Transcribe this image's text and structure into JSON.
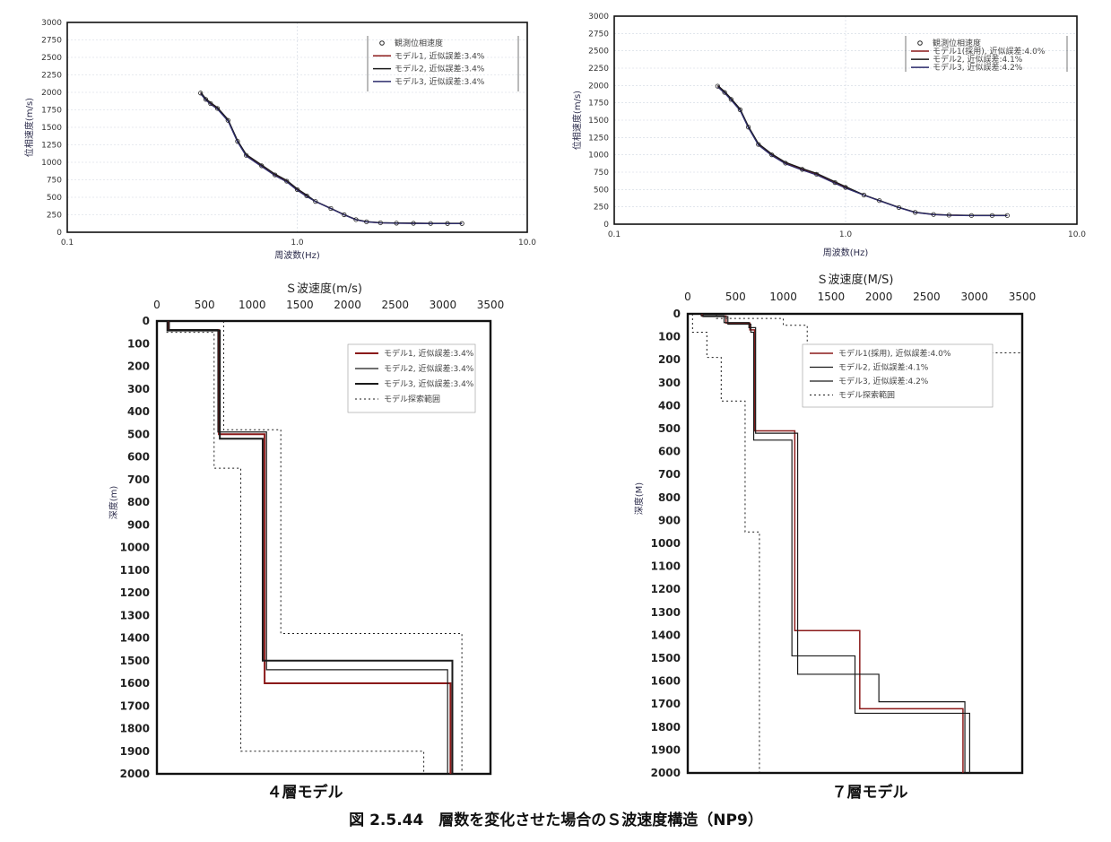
{
  "figure_caption": "図 2.5.44　層数を変化させた場合のＳ波速度構造（NP9）",
  "colors": {
    "red": "#8b1a1a",
    "dark": "#1a1a1a",
    "navy": "#2c2c6c",
    "frame": "#111111",
    "grid": "#cfd6e0"
  },
  "chart_data": [
    {
      "id": "dispersion-4layer",
      "type": "scatter",
      "xscale": "log",
      "xlim": [
        0.1,
        10.0
      ],
      "ylim": [
        0,
        3000
      ],
      "xticks": [
        "0.1",
        "1.0",
        "10.0"
      ],
      "yticks": [
        "0",
        "250",
        "500",
        "750",
        "1000",
        "1250",
        "1500",
        "1750",
        "2000",
        "2250",
        "2500",
        "2750",
        "3000"
      ],
      "xlabel": "周波数(Hz)",
      "ylabel": "位相速度(m/s)",
      "legend": [
        "観測位相速度",
        "モデル1, 近似誤差:3.4%",
        "モデル2, 近似誤差:3.4%",
        "モデル3, 近似誤差:3.4%"
      ],
      "observed": {
        "x": [
          0.38,
          0.4,
          0.42,
          0.45,
          0.5,
          0.55,
          0.6,
          0.7,
          0.8,
          0.9,
          1.0,
          1.1,
          1.2,
          1.4,
          1.6,
          1.8,
          2.0,
          2.3,
          2.7,
          3.2,
          3.8,
          4.5,
          5.2
        ],
        "y": [
          1990,
          1900,
          1840,
          1770,
          1600,
          1300,
          1100,
          950,
          820,
          730,
          610,
          520,
          440,
          340,
          250,
          180,
          150,
          135,
          130,
          128,
          126,
          125,
          125
        ]
      },
      "series": [
        {
          "name": "モデル1, 近似誤差:3.4%",
          "color": "red"
        },
        {
          "name": "モデル2, 近似誤差:3.4%",
          "color": "dark"
        },
        {
          "name": "モデル3, 近似誤差:3.4%",
          "color": "navy"
        }
      ]
    },
    {
      "id": "dispersion-7layer",
      "type": "scatter",
      "xscale": "log",
      "xlim": [
        0.1,
        10.0
      ],
      "ylim": [
        0,
        3000
      ],
      "xticks": [
        "0.1",
        "1.0",
        "10.0"
      ],
      "yticks": [
        "0",
        "250",
        "500",
        "750",
        "1000",
        "1250",
        "1500",
        "1750",
        "2000",
        "2250",
        "2500",
        "2750",
        "3000"
      ],
      "xlabel": "周波数(Hz)",
      "ylabel": "位相速度(m/s)",
      "legend": [
        "観測位相速度",
        "モデル1(採用), 近似誤差:4.0%",
        "モデル2, 近似誤差:4.1%",
        "モデル3, 近似誤差:4.2%"
      ],
      "observed": {
        "x": [
          0.28,
          0.3,
          0.32,
          0.35,
          0.38,
          0.42,
          0.48,
          0.55,
          0.65,
          0.75,
          0.9,
          1.0,
          1.2,
          1.4,
          1.7,
          2.0,
          2.4,
          2.8,
          3.5,
          4.3,
          5.0
        ],
        "y": [
          1990,
          1900,
          1800,
          1650,
          1400,
          1150,
          1000,
          880,
          790,
          720,
          600,
          530,
          420,
          340,
          240,
          170,
          140,
          130,
          125,
          125,
          125
        ]
      },
      "series": [
        {
          "name": "モデル1(採用), 近似誤差:4.0%",
          "color": "red"
        },
        {
          "name": "モデル2, 近似誤差:4.1%",
          "color": "dark"
        },
        {
          "name": "モデル3, 近似誤差:4.2%",
          "color": "navy"
        }
      ]
    },
    {
      "id": "profile-4layer",
      "type": "line",
      "title": "４層モデル",
      "xlabel": "Ｓ波速度(m/s)",
      "ylabel": "深度(m)",
      "xlim": [
        0,
        3500
      ],
      "ylim": [
        2000,
        0
      ],
      "xticks": [
        "0",
        "500",
        "1000",
        "1500",
        "2000",
        "2500",
        "3000",
        "3500"
      ],
      "yticks": [
        "0",
        "100",
        "200",
        "300",
        "400",
        "500",
        "600",
        "700",
        "800",
        "900",
        "1000",
        "1100",
        "1200",
        "1300",
        "1400",
        "1500",
        "1600",
        "1700",
        "1800",
        "1900",
        "2000"
      ],
      "legend": [
        "モデル1, 近似誤差:3.4%",
        "モデル2, 近似誤差:3.4%",
        "モデル3, 近似誤差:3.4%",
        "モデル探索範囲"
      ],
      "series": [
        {
          "name": "モデル1, 近似誤差:3.4%",
          "color": "red",
          "style": "solid",
          "width": 2,
          "points": [
            [
              120,
              0
            ],
            [
              120,
              40
            ],
            [
              650,
              40
            ],
            [
              650,
              500
            ],
            [
              1130,
              500
            ],
            [
              1130,
              1600
            ],
            [
              3080,
              1600
            ],
            [
              3080,
              2000
            ]
          ]
        },
        {
          "name": "モデル2, 近似誤差:3.4%",
          "color": "dark",
          "style": "solid",
          "width": 1.2,
          "points": [
            [
              130,
              0
            ],
            [
              130,
              38
            ],
            [
              640,
              38
            ],
            [
              640,
              490
            ],
            [
              1150,
              490
            ],
            [
              1150,
              1540
            ],
            [
              3050,
              1540
            ],
            [
              3050,
              2000
            ]
          ]
        },
        {
          "name": "モデル3, 近似誤差:3.4%",
          "color": "dark",
          "style": "solid",
          "width": 2,
          "points": [
            [
              110,
              0
            ],
            [
              110,
              42
            ],
            [
              660,
              42
            ],
            [
              660,
              520
            ],
            [
              1110,
              520
            ],
            [
              1110,
              1500
            ],
            [
              3100,
              1500
            ],
            [
              3100,
              2000
            ]
          ]
        },
        {
          "name": "モデル探索範囲",
          "color": "dark",
          "style": "dotted",
          "width": 1,
          "points": [
            [
              100,
              50
            ],
            [
              600,
              50
            ],
            [
              600,
              650
            ],
            [
              880,
              650
            ],
            [
              880,
              1900
            ],
            [
              2800,
              1900
            ],
            [
              2800,
              2000
            ]
          ]
        },
        {
          "name": "モデル探索範囲",
          "color": "dark",
          "style": "dotted",
          "width": 1,
          "legend": false,
          "points": [
            [
              700,
              0
            ],
            [
              700,
              480
            ],
            [
              1300,
              480
            ],
            [
              1300,
              1380
            ],
            [
              3200,
              1380
            ],
            [
              3200,
              2000
            ]
          ]
        }
      ]
    },
    {
      "id": "profile-7layer",
      "type": "line",
      "title": "７層モデル",
      "xlabel": "Ｓ波速度(M/S)",
      "ylabel": "深度(M)",
      "xlim": [
        0,
        3500
      ],
      "ylim": [
        2000,
        0
      ],
      "xticks": [
        "0",
        "500",
        "1000",
        "1500",
        "2000",
        "2500",
        "3000",
        "3500"
      ],
      "yticks": [
        "0",
        "100",
        "200",
        "300",
        "400",
        "500",
        "600",
        "700",
        "800",
        "900",
        "1000",
        "1100",
        "1200",
        "1300",
        "1400",
        "1500",
        "1600",
        "1700",
        "1800",
        "1900",
        "2000"
      ],
      "legend": [
        "モデル1(採用), 近似誤差:4.0%",
        "モデル2, 近似誤差:4.1%",
        "モデル3, 近似誤差:4.2%",
        "モデル探索範囲"
      ],
      "series": [
        {
          "name": "モデル1(採用), 近似誤差:4.0%",
          "color": "red",
          "style": "solid",
          "width": 1.5,
          "points": [
            [
              150,
              0
            ],
            [
              150,
              10
            ],
            [
              400,
              10
            ],
            [
              400,
              40
            ],
            [
              650,
              40
            ],
            [
              650,
              70
            ],
            [
              700,
              70
            ],
            [
              700,
              510
            ],
            [
              1120,
              510
            ],
            [
              1120,
              1380
            ],
            [
              1800,
              1380
            ],
            [
              1800,
              1720
            ],
            [
              2880,
              1720
            ],
            [
              2880,
              2000
            ]
          ]
        },
        {
          "name": "モデル2, 近似誤差:4.1%",
          "color": "dark",
          "style": "solid",
          "width": 1.2,
          "points": [
            [
              160,
              0
            ],
            [
              160,
              12
            ],
            [
              420,
              12
            ],
            [
              420,
              45
            ],
            [
              660,
              45
            ],
            [
              660,
              80
            ],
            [
              690,
              80
            ],
            [
              690,
              550
            ],
            [
              1090,
              550
            ],
            [
              1090,
              1490
            ],
            [
              1750,
              1490
            ],
            [
              1750,
              1740
            ],
            [
              2950,
              1740
            ],
            [
              2950,
              2000
            ]
          ]
        },
        {
          "name": "モデル3, 近似誤差:4.2%",
          "color": "dark",
          "style": "solid",
          "width": 1.2,
          "points": [
            [
              140,
              0
            ],
            [
              140,
              8
            ],
            [
              380,
              8
            ],
            [
              380,
              38
            ],
            [
              640,
              38
            ],
            [
              640,
              60
            ],
            [
              710,
              60
            ],
            [
              710,
              520
            ],
            [
              1150,
              520
            ],
            [
              1150,
              1570
            ],
            [
              2000,
              1570
            ],
            [
              2000,
              1690
            ],
            [
              2900,
              1690
            ],
            [
              2900,
              2000
            ]
          ]
        },
        {
          "name": "モデル探索範囲",
          "color": "dark",
          "style": "dotted",
          "width": 1,
          "points": [
            [
              50,
              0
            ],
            [
              50,
              80
            ],
            [
              200,
              80
            ],
            [
              200,
              190
            ],
            [
              350,
              190
            ],
            [
              350,
              380
            ],
            [
              600,
              380
            ],
            [
              600,
              950
            ],
            [
              750,
              950
            ],
            [
              750,
              2000
            ]
          ]
        },
        {
          "name": "モデル探索範囲",
          "color": "dark",
          "style": "dotted",
          "width": 1,
          "legend": false,
          "points": [
            [
              300,
              0
            ],
            [
              300,
              20
            ],
            [
              1000,
              20
            ],
            [
              1000,
              50
            ],
            [
              1250,
              50
            ],
            [
              1250,
              170
            ],
            [
              3500,
              170
            ]
          ]
        }
      ]
    }
  ]
}
